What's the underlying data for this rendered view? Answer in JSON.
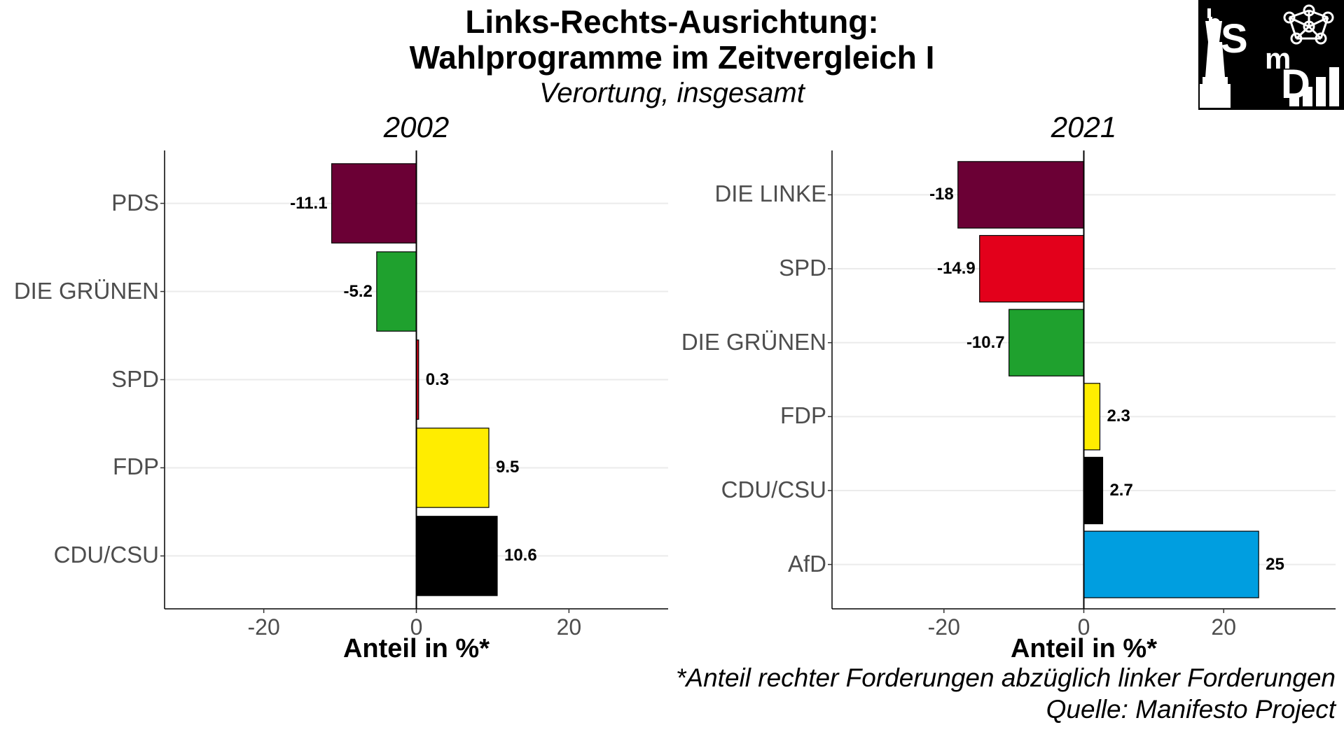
{
  "title": "Links-Rechts-Ausrichtung:",
  "title_line2": "Wahlprogramme im Zeitvergleich I",
  "subtitle": "Verortung, insgesamt",
  "footnote": "*Anteil rechter Forderungen abzüglich linker Forderungen",
  "source": "Quelle: Manifesto Project",
  "logo": {
    "letters": [
      "S",
      "m",
      "D"
    ],
    "icons": [
      "statue-of-liberty-icon",
      "network-icon",
      "bar-chart-icon"
    ]
  },
  "chart_data": [
    {
      "type": "bar",
      "orientation": "horizontal",
      "title": "2002",
      "xlabel": "Anteil in %*",
      "xlim": [
        -33,
        33
      ],
      "xticks": [
        -20,
        0,
        20
      ],
      "categories": [
        "PDS",
        "DIE GRÜNEN",
        "SPD",
        "FDP",
        "CDU/CSU"
      ],
      "values": [
        -11.1,
        -5.2,
        0.3,
        9.5,
        10.6
      ],
      "value_labels": [
        "-11.1",
        "-5.2",
        "0.3",
        "9.5",
        "10.6"
      ],
      "colors": [
        "#6B0035",
        "#1FA12E",
        "#E3001B",
        "#FFED00",
        "#000000"
      ]
    },
    {
      "type": "bar",
      "orientation": "horizontal",
      "title": "2021",
      "xlabel": "Anteil in %*",
      "xlim": [
        -36,
        36
      ],
      "xticks": [
        -20,
        0,
        20
      ],
      "categories": [
        "DIE LINKE",
        "SPD",
        "DIE GRÜNEN",
        "FDP",
        "CDU/CSU",
        "AfD"
      ],
      "values": [
        -18,
        -14.9,
        -10.7,
        2.3,
        2.7,
        25
      ],
      "value_labels": [
        "-18",
        "-14.9",
        "-10.7",
        "2.3",
        "2.7",
        "25"
      ],
      "colors": [
        "#6B0035",
        "#E3001B",
        "#1FA12E",
        "#FFED00",
        "#000000",
        "#009EE0"
      ]
    }
  ]
}
